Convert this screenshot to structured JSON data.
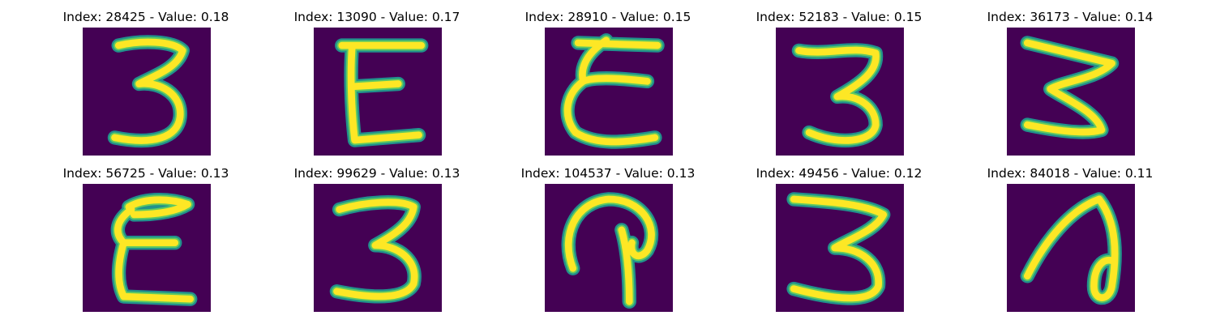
{
  "figure": {
    "colors": {
      "background": "#440154",
      "stroke_edge": "#21918c",
      "stroke_mid": "#5ec962",
      "stroke_core": "#fde725"
    },
    "panels": [
      {
        "title": "Index: 28425 - Value: 0.18",
        "glyph": "digit-three"
      },
      {
        "title": "Index: 13090 - Value: 0.17",
        "glyph": "letter-e"
      },
      {
        "title": "Index: 28910 - Value: 0.15",
        "glyph": "letter-e-curly"
      },
      {
        "title": "Index: 52183 - Value: 0.15",
        "glyph": "digit-three"
      },
      {
        "title": "Index: 36173 - Value: 0.14",
        "glyph": "digit-three-zigzag"
      },
      {
        "title": "Index: 56725 - Value: 0.13",
        "glyph": "letter-e-thick"
      },
      {
        "title": "Index: 99629 - Value: 0.13",
        "glyph": "digit-three"
      },
      {
        "title": "Index: 104537 - Value: 0.13",
        "glyph": "hook-shape"
      },
      {
        "title": "Index: 49456 - Value: 0.12",
        "glyph": "digit-three-wide"
      },
      {
        "title": "Index: 84018 - Value: 0.11",
        "glyph": "loop-shape"
      }
    ]
  }
}
